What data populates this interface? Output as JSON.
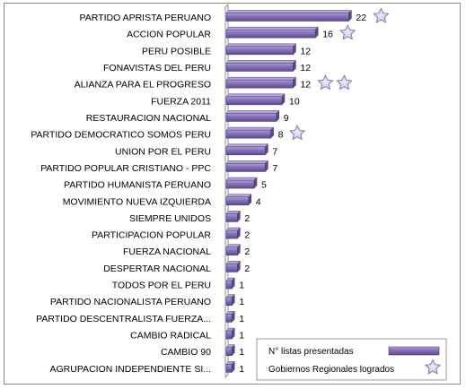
{
  "chart_data": {
    "type": "bar",
    "orientation": "horizontal",
    "categories": [
      "PARTIDO APRISTA PERUANO",
      "ACCION POPULAR",
      "PERU POSIBLE",
      "FONAVISTAS DEL PERU",
      "ALIANZA PARA EL PROGRESO",
      "FUERZA 2011",
      "RESTAURACION NACIONAL",
      "PARTIDO DEMOCRATICO SOMOS PERU",
      "UNION POR EL PERU",
      "PARTIDO POPULAR CRISTIANO  - PPC",
      "PARTIDO HUMANISTA  PERUANO",
      "MOVIMIENTO  NUEVA  IZQUIERDA",
      "SIEMPRE UNIDOS",
      "PARTICIPACION POPULAR",
      "FUERZA NACIONAL",
      "DESPERTAR NACIONAL",
      "TODOS POR EL  PERU",
      "PARTIDO NACIONALISTA PERUANO",
      "PARTIDO DESCENTRALISTA  FUERZA...",
      "CAMBIO RADICAL",
      "CAMBIO 90",
      "AGRUPACION INDEPENDIENTE  SI..."
    ],
    "series": [
      {
        "name": "N° listas presentadas",
        "values": [
          22,
          16,
          12,
          12,
          12,
          10,
          9,
          8,
          7,
          7,
          5,
          4,
          2,
          2,
          2,
          2,
          1,
          1,
          1,
          1,
          1,
          1
        ]
      },
      {
        "name": "Gobiernos Regionales logrados",
        "values": [
          1,
          1,
          0,
          0,
          2,
          0,
          0,
          1,
          0,
          0,
          0,
          0,
          0,
          0,
          0,
          0,
          0,
          0,
          0,
          0,
          0,
          0
        ]
      }
    ],
    "xlim": [
      0,
      24
    ],
    "grid": false,
    "legend_position": "bottom-right",
    "colors": {
      "bar_fill": "#7a62a8",
      "bar_edge": "#4d3b7a",
      "bar_highlight": "#b3a3d6",
      "star_fill": "#d7cdea",
      "star_edge": "#8a78b8",
      "axis": "#9a9a9a"
    }
  }
}
